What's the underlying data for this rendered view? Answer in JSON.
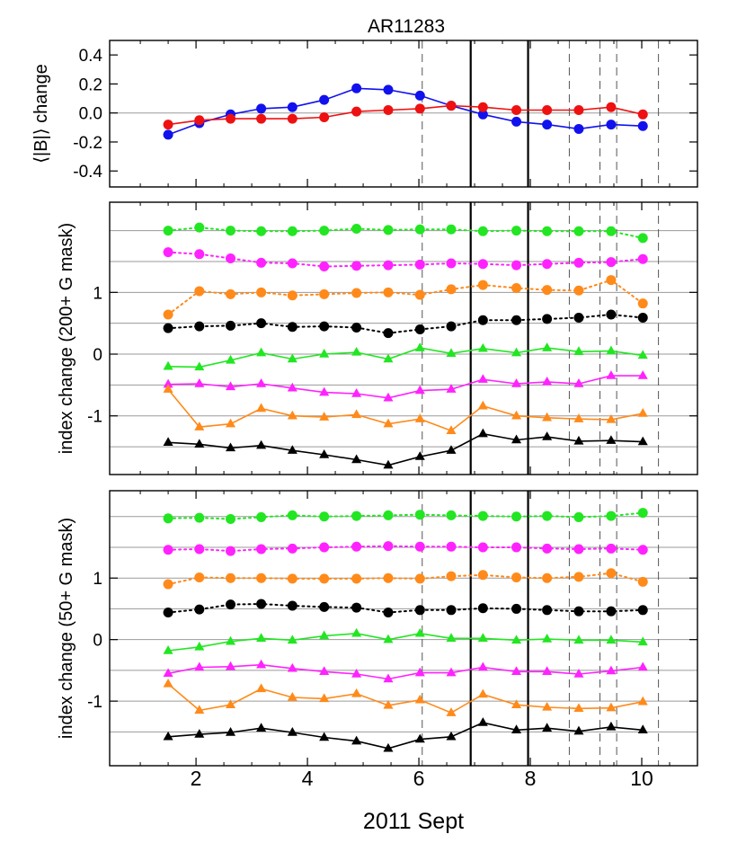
{
  "title": "AR11283",
  "xlabel": "2011 Sept",
  "colors": {
    "green": "#22e622",
    "magenta": "#ff22ff",
    "orange": "#ff8a1a",
    "black": "#000000",
    "red": "#ee1111",
    "blue": "#1111ee",
    "grid": "#9a9a9a"
  },
  "chart_data": [
    {
      "type": "line",
      "ylabel": "⟨|B|⟩ change",
      "xlim": [
        0.45,
        11.0
      ],
      "ylim": [
        -0.51,
        0.5
      ],
      "xticks": [
        2,
        4,
        6,
        8,
        10
      ],
      "xtick_labels": [
        "2",
        "4",
        "6",
        "8",
        "10"
      ],
      "yticks": [
        -0.4,
        -0.2,
        0.0,
        0.2,
        0.4
      ],
      "ytick_labels": [
        "-0.4",
        "-0.2",
        "0.0",
        "0.2",
        "0.4"
      ],
      "grid_y": [
        0.0
      ],
      "solid_vlines": [
        6.93,
        7.96
      ],
      "dashed_vlines": [
        6.06,
        8.7,
        9.25,
        9.55,
        10.3
      ],
      "x": [
        1.5,
        2.06,
        2.62,
        3.17,
        3.73,
        4.3,
        4.88,
        5.45,
        6.02,
        6.58,
        7.15,
        7.75,
        8.3,
        8.87,
        9.45,
        10.02
      ],
      "series": [
        {
          "color": "blue",
          "marker": "circle",
          "line": "solid",
          "values": [
            -0.15,
            -0.07,
            -0.01,
            0.03,
            0.04,
            0.09,
            0.17,
            0.16,
            0.12,
            0.05,
            -0.01,
            -0.06,
            -0.08,
            -0.11,
            -0.08,
            -0.09
          ]
        },
        {
          "color": "red",
          "marker": "circle",
          "line": "solid",
          "values": [
            -0.08,
            -0.05,
            -0.04,
            -0.04,
            -0.04,
            -0.03,
            0.01,
            0.02,
            0.03,
            0.05,
            0.04,
            0.02,
            0.02,
            0.02,
            0.04,
            -0.01
          ]
        }
      ]
    },
    {
      "type": "line",
      "ylabel": "index change (200+ G mask)",
      "xlim": [
        0.45,
        11.0
      ],
      "ylim": [
        -1.95,
        2.46
      ],
      "xticks": [
        2,
        4,
        6,
        8,
        10
      ],
      "yticks": [
        -1,
        0,
        1
      ],
      "ytick_labels": [
        "-1",
        "0",
        "1"
      ],
      "grid_y": [
        2.0,
        1.5,
        1.0,
        0.5,
        0.0,
        -0.5,
        -1.0,
        -1.5
      ],
      "solid_vlines": [
        6.93,
        7.96
      ],
      "dashed_vlines": [
        6.06,
        8.7,
        9.25,
        9.55,
        10.3
      ],
      "x": [
        1.5,
        2.06,
        2.62,
        3.17,
        3.73,
        4.3,
        4.88,
        5.45,
        6.02,
        6.58,
        7.15,
        7.75,
        8.3,
        8.87,
        9.45,
        10.02
      ],
      "series": [
        {
          "color": "green",
          "marker": "circle",
          "line": "dotted",
          "values": [
            2.0,
            2.05,
            2.0,
            1.99,
            1.99,
            2.0,
            2.03,
            2.01,
            2.02,
            2.02,
            1.99,
            2.0,
            1.99,
            1.99,
            1.99,
            1.88
          ]
        },
        {
          "color": "magenta",
          "marker": "circle",
          "line": "dotted",
          "values": [
            1.65,
            1.62,
            1.55,
            1.48,
            1.47,
            1.42,
            1.43,
            1.44,
            1.45,
            1.47,
            1.46,
            1.44,
            1.46,
            1.48,
            1.49,
            1.54
          ]
        },
        {
          "color": "orange",
          "marker": "circle",
          "line": "dotted",
          "values": [
            0.64,
            1.02,
            0.97,
            1.0,
            0.95,
            0.97,
            0.99,
            1.0,
            0.96,
            1.05,
            1.12,
            1.07,
            1.04,
            1.03,
            1.2,
            0.82
          ]
        },
        {
          "color": "black",
          "marker": "circle",
          "line": "dotted",
          "values": [
            0.42,
            0.45,
            0.46,
            0.5,
            0.44,
            0.45,
            0.43,
            0.34,
            0.4,
            0.45,
            0.55,
            0.55,
            0.57,
            0.59,
            0.64,
            0.59
          ]
        },
        {
          "color": "green",
          "marker": "triangle",
          "line": "solid",
          "values": [
            -0.2,
            -0.21,
            -0.1,
            0.02,
            -0.08,
            0.0,
            0.03,
            -0.08,
            0.1,
            0.01,
            0.09,
            0.02,
            0.1,
            0.04,
            0.05,
            -0.02
          ]
        },
        {
          "color": "magenta",
          "marker": "triangle",
          "line": "solid",
          "values": [
            -0.49,
            -0.48,
            -0.53,
            -0.48,
            -0.55,
            -0.62,
            -0.64,
            -0.71,
            -0.59,
            -0.57,
            -0.41,
            -0.48,
            -0.45,
            -0.48,
            -0.35,
            -0.35
          ]
        },
        {
          "color": "orange",
          "marker": "triangle",
          "line": "solid",
          "values": [
            -0.57,
            -1.18,
            -1.13,
            -0.88,
            -1.0,
            -1.02,
            -0.98,
            -1.13,
            -1.05,
            -1.24,
            -0.84,
            -1.0,
            -1.03,
            -1.05,
            -1.06,
            -0.96
          ]
        },
        {
          "color": "black",
          "marker": "triangle",
          "line": "solid",
          "values": [
            -1.43,
            -1.46,
            -1.52,
            -1.48,
            -1.56,
            -1.63,
            -1.71,
            -1.8,
            -1.66,
            -1.56,
            -1.29,
            -1.39,
            -1.34,
            -1.41,
            -1.4,
            -1.42
          ]
        }
      ]
    },
    {
      "type": "line",
      "ylabel": "index change (50+ G mask)",
      "xlim": [
        0.45,
        11.0
      ],
      "ylim": [
        -2.05,
        2.42
      ],
      "xticks": [
        2,
        4,
        6,
        8,
        10
      ],
      "yticks": [
        -1,
        0,
        1
      ],
      "ytick_labels": [
        "-1",
        "0",
        "1"
      ],
      "grid_y": [
        2.0,
        1.5,
        1.0,
        0.5,
        0.0,
        -0.5,
        -1.0,
        -1.5
      ],
      "solid_vlines": [
        6.93,
        7.96
      ],
      "dashed_vlines": [
        6.06,
        8.7,
        9.25,
        9.55,
        10.3
      ],
      "x": [
        1.5,
        2.06,
        2.62,
        3.17,
        3.73,
        4.3,
        4.88,
        5.45,
        6.02,
        6.58,
        7.15,
        7.75,
        8.3,
        8.87,
        9.45,
        10.02
      ],
      "series": [
        {
          "color": "green",
          "marker": "circle",
          "line": "dotted",
          "values": [
            1.97,
            1.98,
            1.96,
            1.99,
            2.02,
            2.0,
            2.01,
            2.02,
            2.03,
            2.02,
            2.01,
            2.0,
            2.01,
            1.99,
            2.01,
            2.06
          ]
        },
        {
          "color": "magenta",
          "marker": "circle",
          "line": "dotted",
          "values": [
            1.46,
            1.47,
            1.44,
            1.47,
            1.48,
            1.5,
            1.51,
            1.52,
            1.51,
            1.51,
            1.5,
            1.5,
            1.48,
            1.47,
            1.48,
            1.46
          ]
        },
        {
          "color": "orange",
          "marker": "circle",
          "line": "dotted",
          "values": [
            0.9,
            1.01,
            1.0,
            1.0,
            0.99,
            0.99,
            0.99,
            1.0,
            0.99,
            1.03,
            1.05,
            1.01,
            1.0,
            1.02,
            1.08,
            0.94
          ]
        },
        {
          "color": "black",
          "marker": "circle",
          "line": "dotted",
          "values": [
            0.44,
            0.49,
            0.57,
            0.58,
            0.55,
            0.53,
            0.52,
            0.44,
            0.48,
            0.48,
            0.51,
            0.5,
            0.48,
            0.46,
            0.46,
            0.48
          ]
        },
        {
          "color": "green",
          "marker": "triangle",
          "line": "solid",
          "values": [
            -0.18,
            -0.12,
            -0.03,
            0.02,
            -0.01,
            0.06,
            0.1,
            0.0,
            0.1,
            0.02,
            0.02,
            -0.01,
            0.01,
            -0.01,
            -0.01,
            -0.04
          ]
        },
        {
          "color": "magenta",
          "marker": "triangle",
          "line": "solid",
          "values": [
            -0.55,
            -0.45,
            -0.44,
            -0.41,
            -0.47,
            -0.52,
            -0.56,
            -0.64,
            -0.54,
            -0.54,
            -0.45,
            -0.52,
            -0.52,
            -0.56,
            -0.51,
            -0.45
          ]
        },
        {
          "color": "orange",
          "marker": "triangle",
          "line": "solid",
          "values": [
            -0.72,
            -1.15,
            -1.06,
            -0.8,
            -0.94,
            -0.96,
            -0.88,
            -1.07,
            -0.98,
            -1.19,
            -0.89,
            -1.06,
            -1.1,
            -1.12,
            -1.11,
            -1.01
          ]
        },
        {
          "color": "black",
          "marker": "triangle",
          "line": "solid",
          "values": [
            -1.58,
            -1.54,
            -1.51,
            -1.44,
            -1.51,
            -1.59,
            -1.65,
            -1.77,
            -1.62,
            -1.58,
            -1.35,
            -1.47,
            -1.44,
            -1.49,
            -1.42,
            -1.47
          ]
        }
      ]
    }
  ]
}
